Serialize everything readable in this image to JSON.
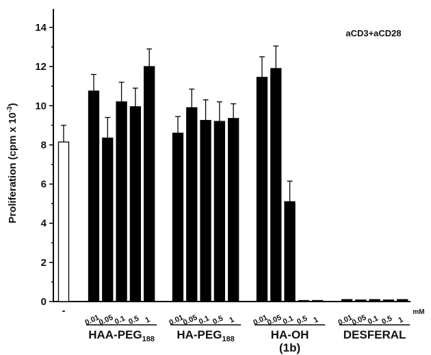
{
  "chart_data": {
    "type": "bar",
    "ylabel": "Proliferation (cpm x 10",
    "ylabel_sup": "-3",
    "ylabel_end": ")",
    "annotation": "aCD3+aCD28",
    "unit_label": "mM",
    "ylim": [
      0,
      15
    ],
    "yticks": [
      0,
      2,
      4,
      6,
      8,
      10,
      12,
      14
    ],
    "grid": false,
    "colors": {
      "control": "#ffffff",
      "treated": "#000000"
    },
    "control": {
      "label": "-",
      "value": 8.15,
      "error": 0.85
    },
    "groups": [
      {
        "label": "HAA-PEG",
        "label_sub": "188",
        "doses": [
          "0.01",
          "0.05",
          "0.1",
          "0.5",
          "1"
        ],
        "values": [
          10.75,
          8.35,
          10.2,
          9.95,
          12.0
        ],
        "errors": [
          0.85,
          1.05,
          1.0,
          0.95,
          0.9
        ]
      },
      {
        "label": "HA-PEG",
        "label_sub": "188",
        "doses": [
          "0.01",
          "0.05",
          "0.1",
          "0.5",
          "1"
        ],
        "values": [
          8.6,
          9.9,
          9.25,
          9.2,
          9.35
        ],
        "errors": [
          0.85,
          0.95,
          1.05,
          1.0,
          0.75
        ]
      },
      {
        "label": "HA-OH",
        "label_line2": "(1b)",
        "doses": [
          "0.01",
          "0.05",
          "0.1",
          "0.5",
          "1"
        ],
        "values": [
          11.45,
          11.9,
          5.1,
          0.05,
          0.05
        ],
        "errors": [
          1.05,
          1.15,
          1.05,
          0,
          0
        ]
      },
      {
        "label": "DESFERAL",
        "doses": [
          "0.01",
          "0.05",
          "0.1",
          "0.5",
          "1"
        ],
        "values": [
          0.1,
          0.08,
          0.1,
          0.08,
          0.1
        ],
        "errors": [
          0,
          0,
          0,
          0,
          0
        ]
      }
    ]
  }
}
